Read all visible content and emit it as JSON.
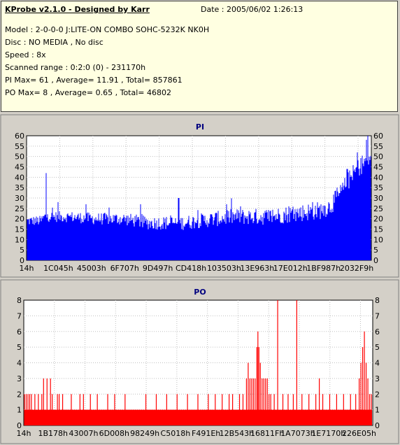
{
  "info": {
    "title": "KProbe v2.1.0 - Designed by Karr",
    "date_label": "Date : 2005/06/02 1:26:13",
    "lines": [
      "Model : 2-0-0-0 J:LITE-ON COMBO SOHC-5232K NK0H",
      "Disc : NO MEDIA , No disc",
      "Speed : 8x",
      "Scanned range : 0:2:0 (0) - 231170h",
      "PI Max= 61 , Average= 11.91 , Total= 857861",
      "PO Max= 8 , Average= 0.65 , Total= 46802"
    ]
  },
  "colors": {
    "pi": "#0000ff",
    "po": "#ff0000",
    "plot_bg": "#ffffff",
    "grid": "#c0c0c0"
  },
  "chart_data": [
    {
      "type": "bar",
      "title": "PI",
      "ylim": [
        0,
        60
      ],
      "yticks": [
        0,
        5,
        10,
        15,
        20,
        25,
        30,
        35,
        40,
        45,
        50,
        55,
        60
      ],
      "xticks": [
        "14h",
        "1C045h",
        "45003h",
        "6F707h",
        "9D497h",
        "CD418h",
        "103503h",
        "13E963h",
        "17E012h",
        "1BF987h",
        "2032F9h"
      ],
      "grid": true,
      "series_color": "#0000ff",
      "profile": [
        [
          0,
          19
        ],
        [
          0.04,
          19
        ],
        [
          0.05,
          21
        ],
        [
          0.12,
          21
        ],
        [
          0.2,
          20
        ],
        [
          0.28,
          20
        ],
        [
          0.35,
          18
        ],
        [
          0.45,
          18
        ],
        [
          0.5,
          19
        ],
        [
          0.55,
          20
        ],
        [
          0.6,
          21
        ],
        [
          0.65,
          21
        ],
        [
          0.7,
          21
        ],
        [
          0.75,
          22
        ],
        [
          0.8,
          23
        ],
        [
          0.85,
          24
        ],
        [
          0.88,
          26
        ],
        [
          0.91,
          32
        ],
        [
          0.94,
          40
        ],
        [
          0.97,
          46
        ],
        [
          1.0,
          50
        ]
      ],
      "spikes": [
        {
          "pos": 0.055,
          "value": 42
        },
        {
          "pos": 0.09,
          "value": 28
        },
        {
          "pos": 0.17,
          "value": 27
        },
        {
          "pos": 0.33,
          "value": 27
        },
        {
          "pos": 0.44,
          "value": 30
        },
        {
          "pos": 0.58,
          "value": 27
        },
        {
          "pos": 0.62,
          "value": 26
        },
        {
          "pos": 0.76,
          "value": 26
        },
        {
          "pos": 0.83,
          "value": 28
        },
        {
          "pos": 0.9,
          "value": 35
        },
        {
          "pos": 0.93,
          "value": 44
        },
        {
          "pos": 0.96,
          "value": 52
        },
        {
          "pos": 0.985,
          "value": 58
        },
        {
          "pos": 0.99,
          "value": 61
        }
      ]
    },
    {
      "type": "bar",
      "title": "PO",
      "ylim": [
        0,
        8
      ],
      "yticks": [
        0,
        1,
        2,
        3,
        4,
        5,
        6,
        7,
        8
      ],
      "xticks": [
        "14h",
        "1B178h",
        "43007h",
        "6D008h",
        "98249h",
        "C5018h",
        "F491Eh",
        "12B543h",
        "16811Fh",
        "1A7073h",
        "1E7170h",
        "226E05h"
      ],
      "grid": true,
      "series_color": "#ff0000",
      "base_value": 1,
      "spikes": [
        {
          "pos": 0.0,
          "value": 2
        },
        {
          "pos": 0.005,
          "value": 2
        },
        {
          "pos": 0.01,
          "value": 2
        },
        {
          "pos": 0.015,
          "value": 2
        },
        {
          "pos": 0.02,
          "value": 2
        },
        {
          "pos": 0.03,
          "value": 2
        },
        {
          "pos": 0.04,
          "value": 2
        },
        {
          "pos": 0.05,
          "value": 2
        },
        {
          "pos": 0.055,
          "value": 3
        },
        {
          "pos": 0.065,
          "value": 3
        },
        {
          "pos": 0.075,
          "value": 3
        },
        {
          "pos": 0.08,
          "value": 2
        },
        {
          "pos": 0.095,
          "value": 2
        },
        {
          "pos": 0.1,
          "value": 2
        },
        {
          "pos": 0.11,
          "value": 2
        },
        {
          "pos": 0.135,
          "value": 2
        },
        {
          "pos": 0.16,
          "value": 2
        },
        {
          "pos": 0.17,
          "value": 2
        },
        {
          "pos": 0.19,
          "value": 2
        },
        {
          "pos": 0.21,
          "value": 2
        },
        {
          "pos": 0.24,
          "value": 2
        },
        {
          "pos": 0.26,
          "value": 2
        },
        {
          "pos": 0.29,
          "value": 2
        },
        {
          "pos": 0.35,
          "value": 2
        },
        {
          "pos": 0.38,
          "value": 2
        },
        {
          "pos": 0.41,
          "value": 2
        },
        {
          "pos": 0.44,
          "value": 2
        },
        {
          "pos": 0.47,
          "value": 2
        },
        {
          "pos": 0.5,
          "value": 2
        },
        {
          "pos": 0.53,
          "value": 2
        },
        {
          "pos": 0.55,
          "value": 2
        },
        {
          "pos": 0.57,
          "value": 2
        },
        {
          "pos": 0.59,
          "value": 2
        },
        {
          "pos": 0.6,
          "value": 2
        },
        {
          "pos": 0.62,
          "value": 2
        },
        {
          "pos": 0.63,
          "value": 2
        },
        {
          "pos": 0.64,
          "value": 3
        },
        {
          "pos": 0.645,
          "value": 4
        },
        {
          "pos": 0.65,
          "value": 3
        },
        {
          "pos": 0.655,
          "value": 3
        },
        {
          "pos": 0.66,
          "value": 3
        },
        {
          "pos": 0.665,
          "value": 3
        },
        {
          "pos": 0.67,
          "value": 5
        },
        {
          "pos": 0.673,
          "value": 6
        },
        {
          "pos": 0.676,
          "value": 5
        },
        {
          "pos": 0.68,
          "value": 4
        },
        {
          "pos": 0.685,
          "value": 3
        },
        {
          "pos": 0.69,
          "value": 3
        },
        {
          "pos": 0.695,
          "value": 3
        },
        {
          "pos": 0.7,
          "value": 3
        },
        {
          "pos": 0.705,
          "value": 2
        },
        {
          "pos": 0.71,
          "value": 2
        },
        {
          "pos": 0.72,
          "value": 2
        },
        {
          "pos": 0.73,
          "value": 8
        },
        {
          "pos": 0.745,
          "value": 2
        },
        {
          "pos": 0.76,
          "value": 2
        },
        {
          "pos": 0.775,
          "value": 2
        },
        {
          "pos": 0.785,
          "value": 8
        },
        {
          "pos": 0.8,
          "value": 2
        },
        {
          "pos": 0.82,
          "value": 2
        },
        {
          "pos": 0.84,
          "value": 2
        },
        {
          "pos": 0.85,
          "value": 3
        },
        {
          "pos": 0.86,
          "value": 2
        },
        {
          "pos": 0.88,
          "value": 2
        },
        {
          "pos": 0.9,
          "value": 2
        },
        {
          "pos": 0.92,
          "value": 2
        },
        {
          "pos": 0.94,
          "value": 2
        },
        {
          "pos": 0.955,
          "value": 2
        },
        {
          "pos": 0.965,
          "value": 3
        },
        {
          "pos": 0.97,
          "value": 4
        },
        {
          "pos": 0.975,
          "value": 5
        },
        {
          "pos": 0.98,
          "value": 6
        },
        {
          "pos": 0.985,
          "value": 4
        },
        {
          "pos": 0.99,
          "value": 3
        },
        {
          "pos": 0.995,
          "value": 2
        },
        {
          "pos": 1.0,
          "value": 2
        }
      ]
    }
  ]
}
